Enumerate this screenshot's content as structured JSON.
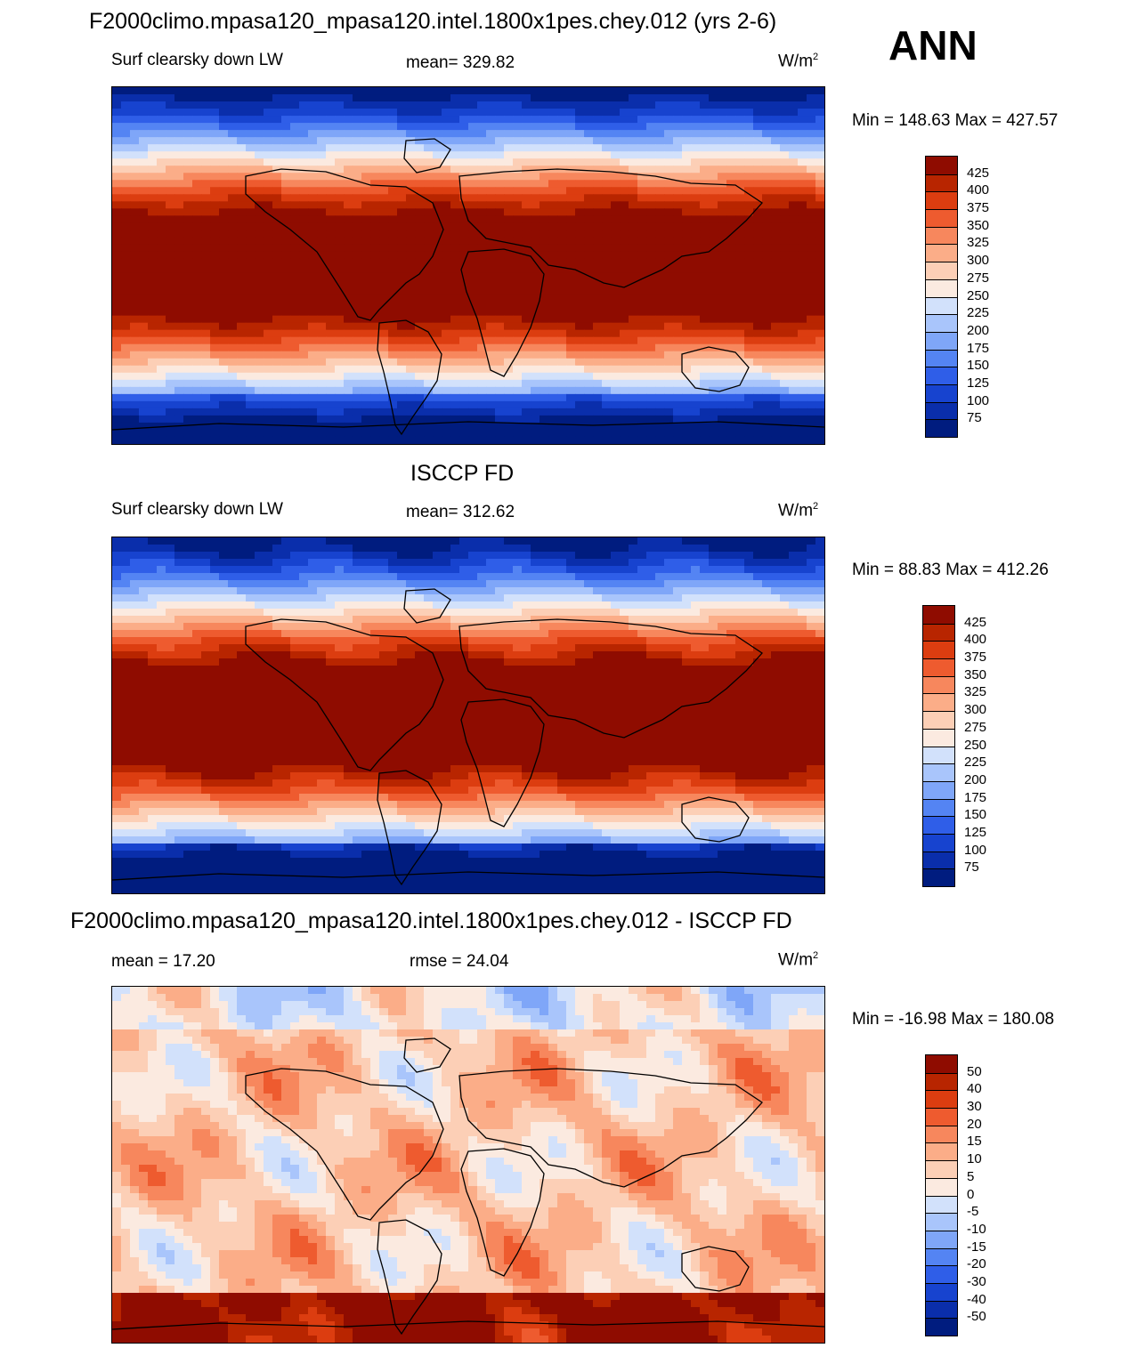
{
  "season": "ANN",
  "colors": {
    "model_scale": [
      "#001C7F",
      "#0A2EAB",
      "#1743CF",
      "#2F5EE8",
      "#5484F3",
      "#7FA6F8",
      "#A9C5FB",
      "#D2E1FB",
      "#FBEAE0",
      "#FCCFB6",
      "#FBAD88",
      "#F7875D",
      "#EE5B2F",
      "#DC3D10",
      "#B82500",
      "#8F0C00"
    ],
    "diff_scale": [
      "#001C7F",
      "#0A2EAB",
      "#1743CF",
      "#2F5EE8",
      "#5484F3",
      "#7FA6F8",
      "#A9C5FB",
      "#D2E1FB",
      "#FBEAE0",
      "#FCCFB6",
      "#FBAD88",
      "#F7875D",
      "#EE5B2F",
      "#DC3D10",
      "#B82500",
      "#8F0C00"
    ]
  },
  "panels": [
    {
      "id": "model",
      "title": "F2000climo.mpasa120_mpasa120.intel.1800x1pes.chey.012 (yrs 2-6)",
      "left_label": "Surf clearsky down LW",
      "center_label": "mean= 329.82",
      "units_base": "W/m",
      "units_exp": "2",
      "minmax": "Min = 148.63 Max = 427.57",
      "ticks": [
        "425",
        "400",
        "375",
        "350",
        "325",
        "300",
        "275",
        "250",
        "225",
        "200",
        "175",
        "150",
        "125",
        "100",
        "75"
      ]
    },
    {
      "id": "obs",
      "title": "ISCCP FD",
      "left_label": "Surf clearsky down LW",
      "center_label": "mean= 312.62",
      "units_base": "W/m",
      "units_exp": "2",
      "minmax": "Min =  88.83 Max = 412.26",
      "ticks": [
        "425",
        "400",
        "375",
        "350",
        "325",
        "300",
        "275",
        "250",
        "225",
        "200",
        "175",
        "150",
        "125",
        "100",
        "75"
      ]
    },
    {
      "id": "diff",
      "title": "F2000climo.mpasa120_mpasa120.intel.1800x1pes.chey.012 - ISCCP FD",
      "left_label": "mean =  17.20",
      "center_label": "rmse =  24.04",
      "units_base": "W/m",
      "units_exp": "2",
      "minmax": "Min = -16.98 Max = 180.08",
      "ticks": [
        "50",
        "40",
        "30",
        "20",
        "15",
        "10",
        "5",
        "0",
        "-5",
        "-10",
        "-15",
        "-20",
        "-30",
        "-40",
        "-50"
      ]
    }
  ]
}
